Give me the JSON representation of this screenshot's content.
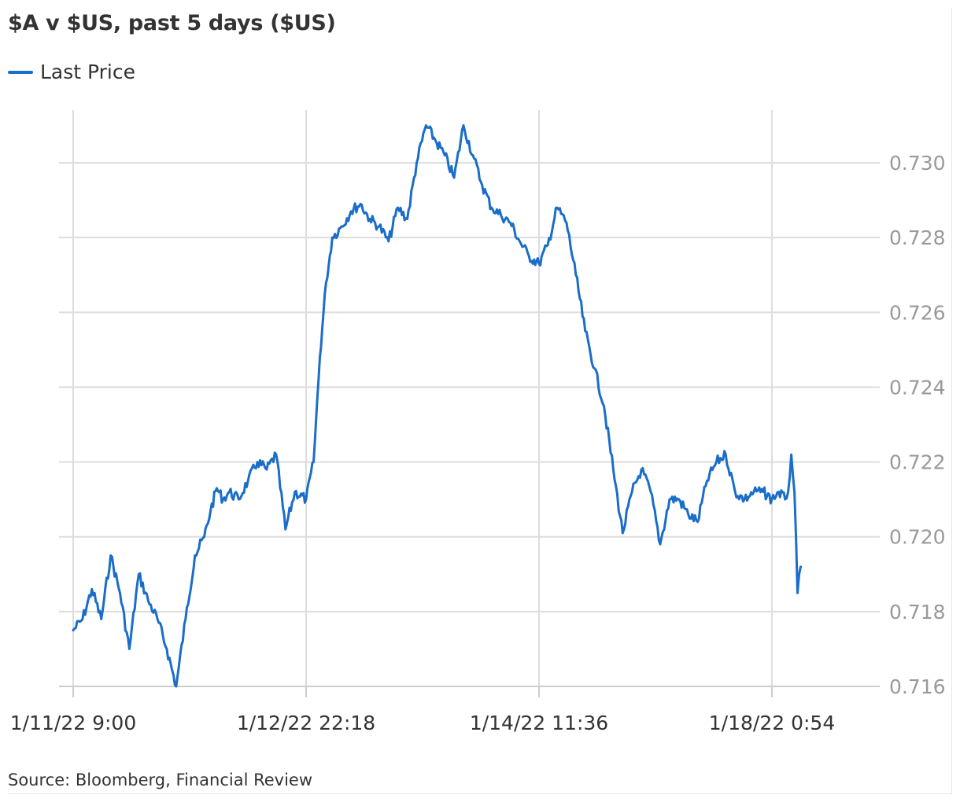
{
  "source": "Source: Bloomberg, Financial Review",
  "colors": {
    "line": "#1a6dc8",
    "grid": "#dddddd",
    "axis": "#cccccc",
    "ytick": "#999999"
  },
  "chart_data": {
    "type": "line",
    "title": "$A v $US, past 5 days ($US)",
    "xlabel": "",
    "ylabel": "",
    "x_ticks": [
      "1/11/22 9:00",
      "1/12/22 22:18",
      "1/14/22 11:36",
      "1/18/22 0:54"
    ],
    "x_range": [
      "1/11/22 9:00",
      "1/18/22 5:30"
    ],
    "y_ticks": [
      "0.716",
      "0.718",
      "0.720",
      "0.722",
      "0.724",
      "0.726",
      "0.728",
      "0.730"
    ],
    "ylim": [
      0.716,
      0.7315
    ],
    "grid": true,
    "legend": "top-left",
    "series": [
      {
        "name": "Last Price",
        "x": [
          "1/11/22 9:00",
          "1/11/22 10:30",
          "1/11/22 12:00",
          "1/11/22 13:30",
          "1/11/22 15:00",
          "1/11/22 16:30",
          "1/11/22 18:00",
          "1/11/22 19:30",
          "1/11/22 21:00",
          "1/11/22 22:30",
          "1/12/22 0:00",
          "1/12/22 1:30",
          "1/12/22 3:00",
          "1/12/22 4:30",
          "1/12/22 6:00",
          "1/12/22 7:00",
          "1/12/22 8:00",
          "1/12/22 9:00",
          "1/12/22 10:00",
          "1/12/22 11:30",
          "1/12/22 13:00",
          "1/12/22 14:30",
          "1/12/22 16:00",
          "1/12/22 17:30",
          "1/12/22 19:00",
          "1/12/22 20:30",
          "1/12/22 22:18",
          "1/12/22 23:30",
          "1/13/22 0:30",
          "1/13/22 1:30",
          "1/13/22 2:30",
          "1/13/22 4:00",
          "1/13/22 5:30",
          "1/13/22 7:00",
          "1/13/22 8:30",
          "1/13/22 10:00",
          "1/13/22 11:30",
          "1/13/22 13:00",
          "1/13/22 14:30",
          "1/13/22 16:00",
          "1/13/22 17:30",
          "1/13/22 19:00",
          "1/13/22 20:30",
          "1/13/22 22:00",
          "1/13/22 23:30",
          "1/14/22 1:00",
          "1/14/22 2:30",
          "1/14/22 4:00",
          "1/14/22 5:30",
          "1/14/22 7:00",
          "1/14/22 8:30",
          "1/14/22 10:00",
          "1/14/22 11:36",
          "1/14/22 13:00",
          "1/14/22 14:30",
          "1/14/22 16:00",
          "1/14/22 17:30",
          "1/14/22 19:00",
          "1/14/22 20:30",
          "1/14/22 22:00",
          "1/14/22 23:30",
          "1/17/22 1:00",
          "1/17/22 2:30",
          "1/17/22 4:00",
          "1/17/22 5:30",
          "1/17/22 7:00",
          "1/17/22 8:30",
          "1/17/22 10:00",
          "1/17/22 11:30",
          "1/17/22 13:00",
          "1/17/22 14:30",
          "1/17/22 16:00",
          "1/17/22 17:30",
          "1/17/22 19:00",
          "1/17/22 20:30",
          "1/17/22 22:00",
          "1/17/22 23:30",
          "1/18/22 0:54",
          "1/18/22 2:00",
          "1/18/22 3:00",
          "1/18/22 3:30",
          "1/18/22 4:00",
          "1/18/22 4:30",
          "1/18/22 5:00",
          "1/18/22 5:30"
        ],
        "values": [
          0.7175,
          0.7178,
          0.7186,
          0.7178,
          0.7195,
          0.7185,
          0.717,
          0.719,
          0.7183,
          0.7178,
          0.717,
          0.716,
          0.7178,
          0.7195,
          0.72,
          0.7207,
          0.7213,
          0.721,
          0.7212,
          0.721,
          0.7215,
          0.722,
          0.7218,
          0.7222,
          0.7202,
          0.7212,
          0.721,
          0.722,
          0.7248,
          0.7268,
          0.728,
          0.7283,
          0.7287,
          0.7289,
          0.7285,
          0.7283,
          0.7279,
          0.7288,
          0.7285,
          0.73,
          0.731,
          0.7306,
          0.7302,
          0.7296,
          0.731,
          0.7302,
          0.7294,
          0.7288,
          0.7286,
          0.7284,
          0.7279,
          0.7275,
          0.7273,
          0.7278,
          0.7288,
          0.7284,
          0.727,
          0.7255,
          0.7245,
          0.7235,
          0.7218,
          0.7201,
          0.7212,
          0.7218,
          0.7212,
          0.7198,
          0.721,
          0.721,
          0.7206,
          0.7204,
          0.7215,
          0.722,
          0.7222,
          0.7212,
          0.721,
          0.7212,
          0.7212,
          0.721,
          0.7212,
          0.721,
          0.7212,
          0.7222,
          0.7212,
          0.7185,
          0.7192
        ]
      }
    ]
  }
}
